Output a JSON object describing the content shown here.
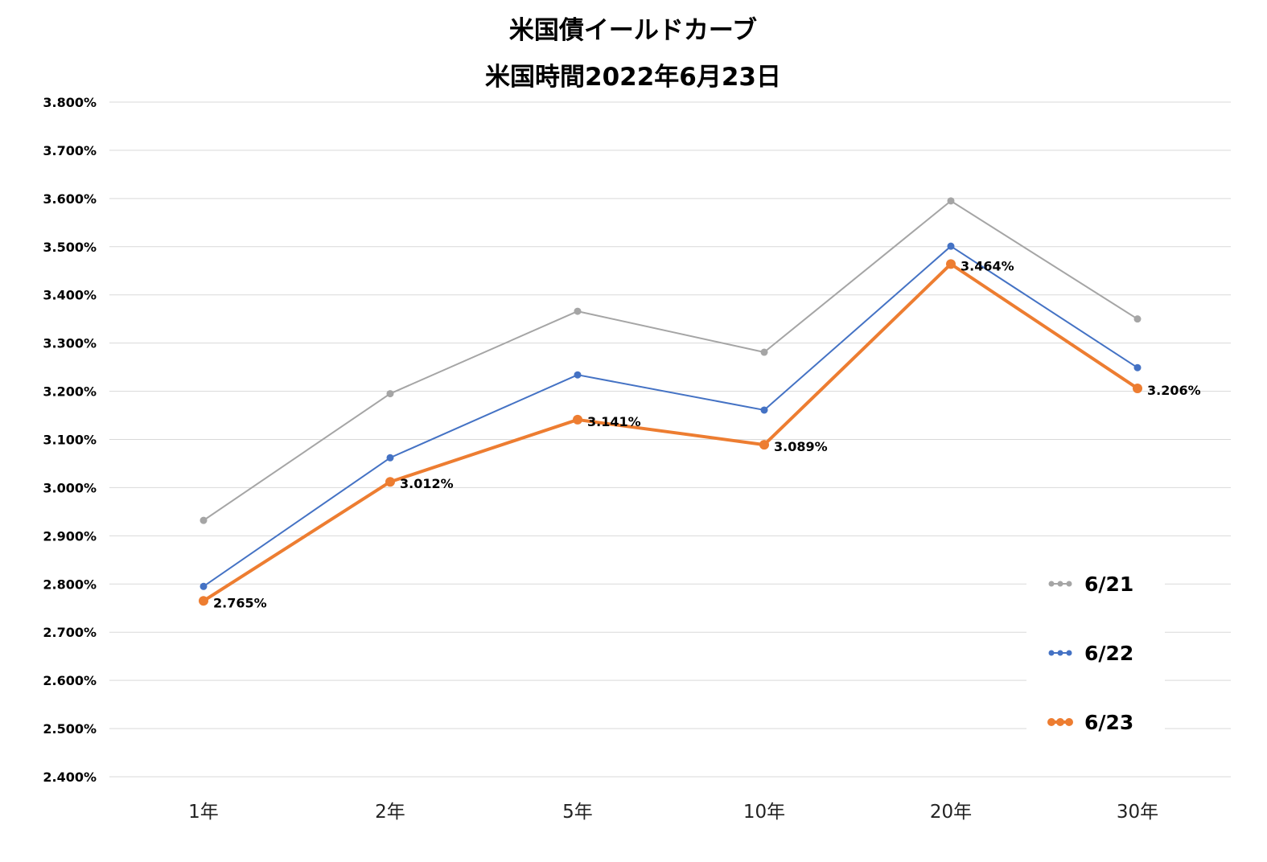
{
  "chart_data": {
    "type": "line",
    "title": "米国債イールドカーブ",
    "subtitle": "米国時間2022年6月23日",
    "categories": [
      "1年",
      "2年",
      "5年",
      "10年",
      "20年",
      "30年"
    ],
    "ylim": [
      2.4,
      3.8
    ],
    "yticks": [
      "3.800%",
      "3.700%",
      "3.600%",
      "3.500%",
      "3.400%",
      "3.300%",
      "3.200%",
      "3.100%",
      "3.000%",
      "2.900%",
      "2.800%",
      "2.700%",
      "2.600%",
      "2.500%",
      "2.400%"
    ],
    "grid": true,
    "legend_position": "bottom-right",
    "series": [
      {
        "name": "6/21",
        "color": "#a5a5a5",
        "values": [
          2.932,
          3.195,
          3.366,
          3.281,
          3.595,
          3.35
        ]
      },
      {
        "name": "6/22",
        "color": "#4472c4",
        "values": [
          2.795,
          3.062,
          3.234,
          3.161,
          3.501,
          3.249
        ]
      },
      {
        "name": "6/23",
        "color": "#ed7d31",
        "values": [
          2.765,
          3.012,
          3.141,
          3.089,
          3.464,
          3.206
        ],
        "data_labels": [
          "2.765%",
          "3.012%",
          "3.141%",
          "3.089%",
          "3.464%",
          "3.206%"
        ]
      }
    ]
  }
}
